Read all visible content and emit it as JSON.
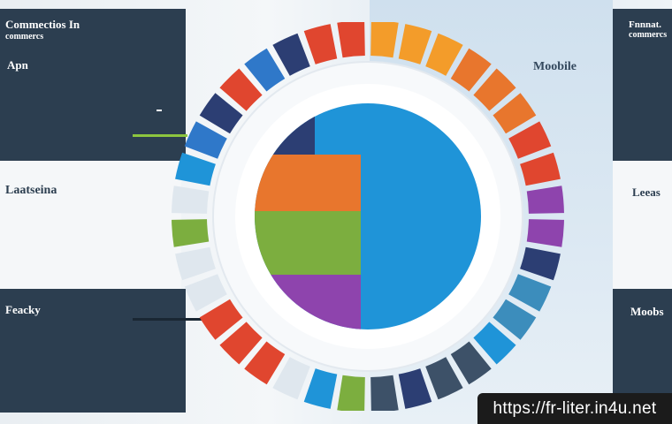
{
  "panels": {
    "top_left": {
      "title": "Commectios In",
      "subtitle": "commercs",
      "lines": [
        "",
        "",
        "",
        "",
        ""
      ]
    },
    "mid_left": {
      "title": "Laatseina",
      "lines": [
        "",
        "",
        "",
        ""
      ]
    },
    "bottom_left": {
      "title": "Feacky",
      "lines": [
        "",
        "",
        ""
      ]
    },
    "top_right": {
      "title": "Fnnnat.",
      "subtitle": "commercs",
      "lines": [
        "",
        "",
        "",
        ""
      ]
    },
    "mid_right": {
      "title": "Leeas",
      "lines": [
        "",
        "",
        ""
      ]
    },
    "bottom_right": {
      "title": "Moobs",
      "lines": [
        "",
        "",
        "",
        ""
      ]
    }
  },
  "labels": {
    "app": "Apn",
    "mobile": "Moobile",
    "left_tag": "",
    "bottom_left_tag": "",
    "center_heading": "",
    "ring_heading": ""
  },
  "center_lines": [
    "",
    "",
    "",
    "",
    "",
    "",
    "",
    ""
  ],
  "wheel": {
    "colors": {
      "orange": "#f39c2a",
      "orange_dark": "#e8762d",
      "red": "#e0462f",
      "blue": "#2f78c9",
      "navy": "#2c3e73",
      "teal": "#3c8dbc",
      "green": "#7cae3f",
      "purple": "#8e44ad",
      "slate": "#3d5168",
      "sky": "#1f94d8",
      "light": "#dfe7ee"
    }
  },
  "watermark": "https://fr-liter.in4u.net"
}
